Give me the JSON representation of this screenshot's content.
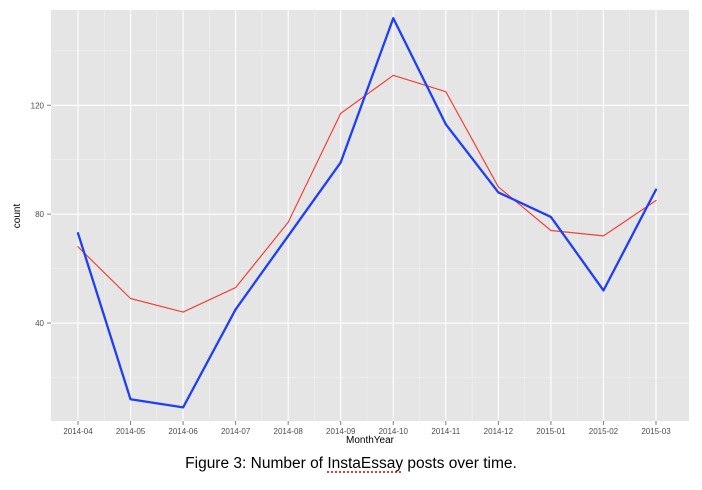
{
  "figure": {
    "caption_before": "Figure 3: Number of ",
    "caption_highlight": "InstaEssay",
    "caption_after": " posts over time."
  },
  "colors": {
    "panel_background": "#e5e5e5",
    "grid": "#ffffff",
    "series_blue": "#1f3ff5",
    "series_red": "#f2433a"
  },
  "chart_data": {
    "type": "line",
    "title": "",
    "xlabel": "MonthYear",
    "ylabel": "count",
    "categories": [
      "2014-04",
      "2014-05",
      "2014-06",
      "2014-07",
      "2014-08",
      "2014-09",
      "2014-10",
      "2014-11",
      "2014-12",
      "2015-01",
      "2015-02",
      "2015-03"
    ],
    "ylim": [
      4,
      155
    ],
    "yticks": [
      40,
      80,
      120
    ],
    "grid": true,
    "legend": "none",
    "series": [
      {
        "values": [
          73,
          12,
          9,
          45,
          72,
          99,
          152,
          113,
          88,
          79,
          52,
          89
        ],
        "color": "#1f3ff5"
      },
      {
        "values": [
          68,
          49,
          44,
          53,
          77,
          117,
          131,
          125,
          90,
          74,
          72,
          85
        ],
        "color": "#f2433a"
      }
    ]
  }
}
